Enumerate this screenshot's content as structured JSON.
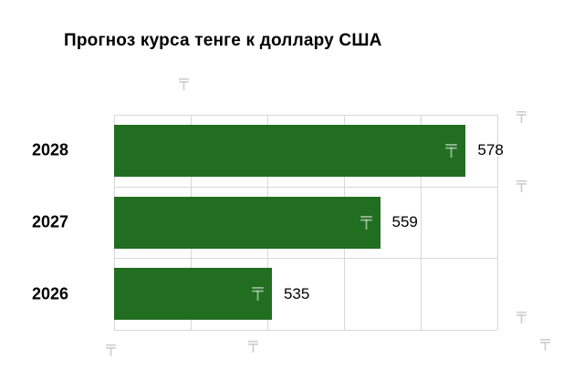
{
  "chart_data": {
    "type": "bar",
    "orientation": "horizontal",
    "title": "Прогноз курса тенге к доллару США",
    "categories": [
      "2028",
      "2027",
      "2026"
    ],
    "values": [
      578,
      559,
      535
    ],
    "xlim": [
      500,
      585
    ],
    "xlabel": "",
    "ylabel": "",
    "grid": true,
    "legend": false,
    "currency_symbol": "₸",
    "colors": {
      "bar": "#216e21",
      "grid": "#d8d8d8",
      "title": "#000000",
      "value_label": "#000000",
      "category_label": "#000000",
      "bar_symbol": "#ffffff",
      "watermark": "#cdcdcd"
    }
  }
}
